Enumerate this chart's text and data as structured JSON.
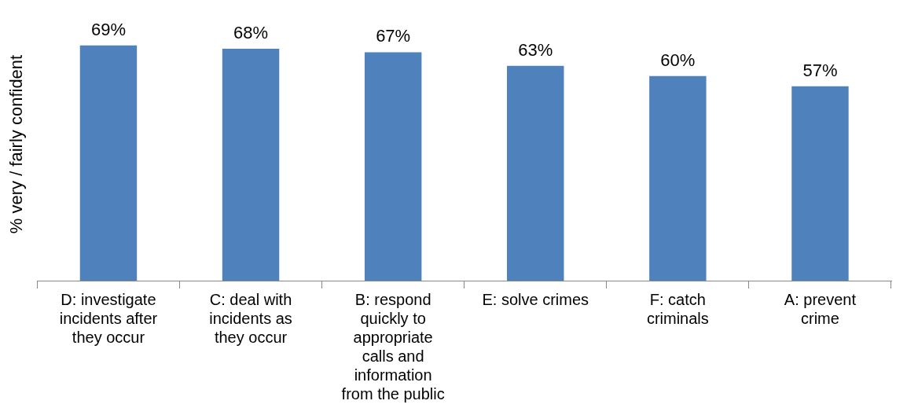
{
  "chart_data": {
    "type": "bar",
    "ylabel": "% very / fairly confident",
    "categories": [
      "D: investigate incidents after they occur",
      "C: deal with incidents as they occur",
      "B: respond quickly to appropriate calls and information from the public",
      "E: solve crimes",
      "F: catch criminals",
      "A: prevent crime"
    ],
    "values": [
      69,
      68,
      67,
      63,
      60,
      57
    ],
    "value_labels": [
      "69%",
      "68%",
      "67%",
      "63%",
      "60%",
      "57%"
    ],
    "color": "#4f81bd",
    "tick_labels": "x",
    "grid": false,
    "legend": false
  }
}
